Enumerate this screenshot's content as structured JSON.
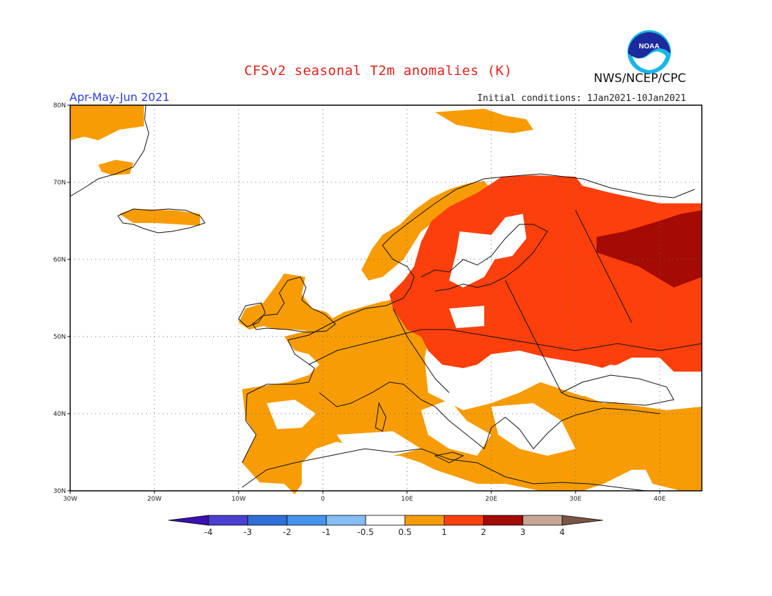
{
  "title": "CFSv2 seasonal T2m anomalies (K)",
  "agency": "NWS/NCEP/CPC",
  "logo_text": "NOAA",
  "season": "Apr-May-Jun 2021",
  "initial_conditions": "Initial conditions: 1Jan2021-10Jan2021",
  "map": {
    "region": "Europe",
    "lon_range": [
      -30,
      45
    ],
    "lat_range": [
      30,
      80
    ],
    "lat_labels": [
      "80N",
      "70N",
      "60N",
      "50N",
      "40N",
      "30N"
    ],
    "lon_labels": [
      "30W",
      "20W",
      "10W",
      "0",
      "10E",
      "20E",
      "30E",
      "40E"
    ]
  },
  "colorbar": {
    "tick_labels": [
      "-4",
      "-3",
      "-2",
      "-1",
      "-0.5",
      "0.5",
      "1",
      "2",
      "3",
      "4"
    ],
    "colors": [
      "#3a10b0",
      "#4a3fd0",
      "#2f6fd8",
      "#4493ec",
      "#86bdf2",
      "#ffffff",
      "#f79c05",
      "#fd3f0c",
      "#a30b04",
      "#c8a596",
      "#7a5446"
    ]
  },
  "colors": {
    "title": "#e0201a",
    "season": "#2a3ee8",
    "anomaly_0.5_1": "#f79c05",
    "anomaly_1_2": "#fd3f0c",
    "anomaly_2_3": "#a30b04"
  }
}
